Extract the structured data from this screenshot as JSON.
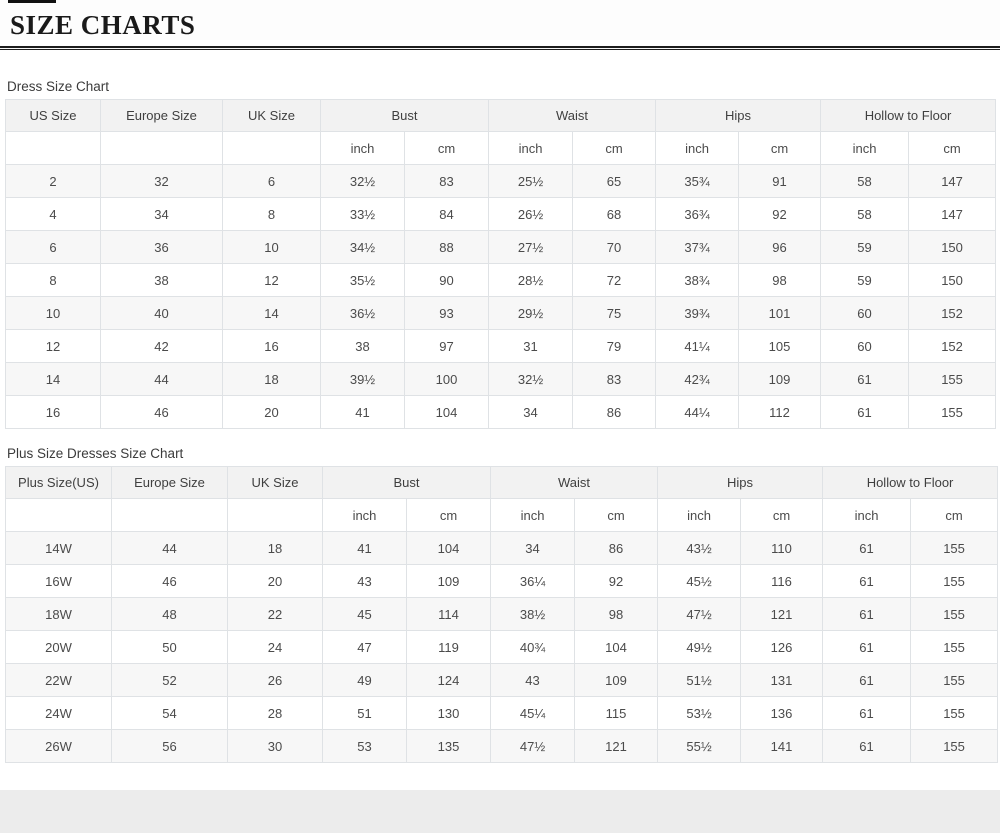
{
  "page": {
    "title": "SIZE CHARTS"
  },
  "tables": [
    {
      "caption": "Dress Size Chart",
      "size_columns": [
        "US Size",
        "Europe Size",
        "UK Size"
      ],
      "measurement_columns": [
        "Bust",
        "Waist",
        "Hips",
        "Hollow to Floor"
      ],
      "unit_labels": [
        "inch",
        "cm"
      ],
      "rows": [
        [
          "2",
          "32",
          "6",
          "32½",
          "83",
          "25½",
          "65",
          "35¾",
          "91",
          "58",
          "147"
        ],
        [
          "4",
          "34",
          "8",
          "33½",
          "84",
          "26½",
          "68",
          "36¾",
          "92",
          "58",
          "147"
        ],
        [
          "6",
          "36",
          "10",
          "34½",
          "88",
          "27½",
          "70",
          "37¾",
          "96",
          "59",
          "150"
        ],
        [
          "8",
          "38",
          "12",
          "35½",
          "90",
          "28½",
          "72",
          "38¾",
          "98",
          "59",
          "150"
        ],
        [
          "10",
          "40",
          "14",
          "36½",
          "93",
          "29½",
          "75",
          "39¾",
          "101",
          "60",
          "152"
        ],
        [
          "12",
          "42",
          "16",
          "38",
          "97",
          "31",
          "79",
          "41¼",
          "105",
          "60",
          "152"
        ],
        [
          "14",
          "44",
          "18",
          "39½",
          "100",
          "32½",
          "83",
          "42¾",
          "109",
          "61",
          "155"
        ],
        [
          "16",
          "46",
          "20",
          "41",
          "104",
          "34",
          "86",
          "44¼",
          "112",
          "61",
          "155"
        ]
      ]
    },
    {
      "caption": "Plus Size Dresses Size Chart",
      "size_columns": [
        "Plus Size(US)",
        "Europe Size",
        "UK Size"
      ],
      "measurement_columns": [
        "Bust",
        "Waist",
        "Hips",
        "Hollow to Floor"
      ],
      "unit_labels": [
        "inch",
        "cm"
      ],
      "rows": [
        [
          "14W",
          "44",
          "18",
          "41",
          "104",
          "34",
          "86",
          "43½",
          "110",
          "61",
          "155"
        ],
        [
          "16W",
          "46",
          "20",
          "43",
          "109",
          "36¼",
          "92",
          "45½",
          "116",
          "61",
          "155"
        ],
        [
          "18W",
          "48",
          "22",
          "45",
          "114",
          "38½",
          "98",
          "47½",
          "121",
          "61",
          "155"
        ],
        [
          "20W",
          "50",
          "24",
          "47",
          "119",
          "40¾",
          "104",
          "49½",
          "126",
          "61",
          "155"
        ],
        [
          "22W",
          "52",
          "26",
          "49",
          "124",
          "43",
          "109",
          "51½",
          "131",
          "61",
          "155"
        ],
        [
          "24W",
          "54",
          "28",
          "51",
          "130",
          "45¼",
          "115",
          "53½",
          "136",
          "61",
          "155"
        ],
        [
          "26W",
          "56",
          "30",
          "53",
          "135",
          "47½",
          "121",
          "55½",
          "141",
          "61",
          "155"
        ]
      ]
    }
  ],
  "colors": {
    "title_text": "#1a1a1a",
    "header_row_bg": "#f2f2f2",
    "alt_row_bg": "#f7f7f7",
    "table_border": "#dfe2e5",
    "body_text": "#4b4b4b",
    "bottom_band": "#ececec"
  }
}
